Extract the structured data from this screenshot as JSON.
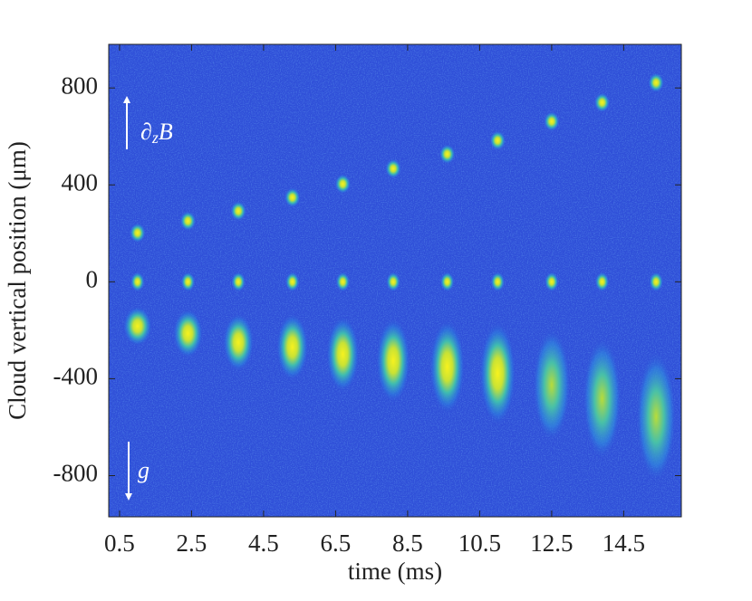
{
  "chart_data": {
    "type": "cloud-image",
    "xlabel": "time (ms)",
    "ylabel": "Cloud vertical position (μm)",
    "x": [
      1.0,
      2.4,
      3.8,
      5.3,
      6.7,
      8.1,
      9.6,
      11.0,
      12.5,
      13.9,
      15.4
    ],
    "series": [
      {
        "color": "#f5f020",
        "values": [
          202,
          251,
          292,
          348,
          404,
          467,
          527,
          583,
          662,
          740,
          822
        ]
      },
      {
        "color": "#f5f020",
        "values": [
          0,
          0,
          0,
          0,
          0,
          0,
          0,
          0,
          0,
          0,
          0
        ]
      },
      {
        "color": "#f5f020",
        "values": [
          -183,
          -213,
          -250,
          -269,
          -299,
          -325,
          -351,
          -378,
          -426,
          -482,
          -557
        ]
      }
    ],
    "xlim": [
      0.2,
      16.1
    ],
    "xticks": [
      0.5,
      2.5,
      4.5,
      6.5,
      8.5,
      10.5,
      12.5,
      14.5
    ],
    "ylim": [
      -970,
      980
    ],
    "yticks": [
      -800,
      -400,
      0,
      400,
      800
    ],
    "background": "#2f4fd8",
    "annotations": [
      {
        "text": "∂",
        "subscript": "z",
        "suffix": "B"
      },
      {
        "text": "g"
      }
    ]
  }
}
